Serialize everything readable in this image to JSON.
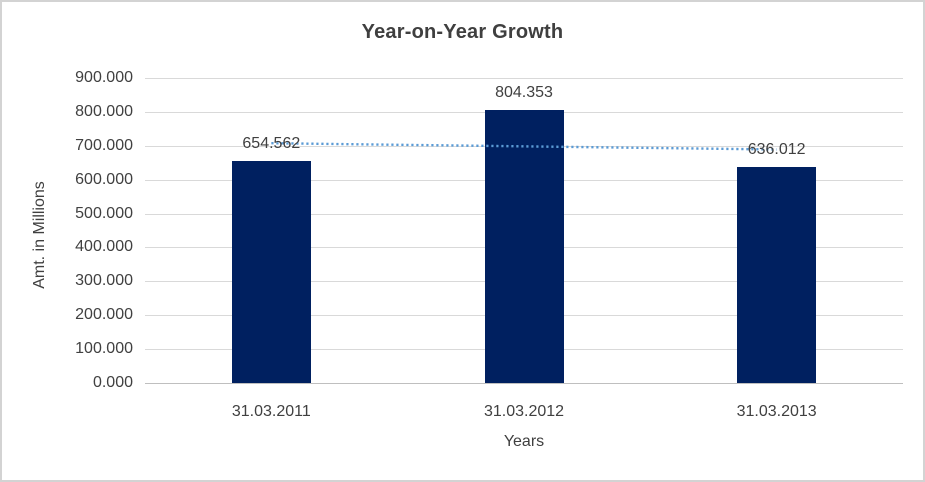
{
  "chart_data": {
    "type": "bar",
    "title": "Year-on-Year Growth",
    "xlabel": "Years",
    "ylabel": "Amt. in Millions",
    "categories": [
      "31.03.2011",
      "31.03.2012",
      "31.03.2013"
    ],
    "values": [
      654.562,
      804.353,
      636.012
    ],
    "data_labels": [
      "654.562",
      "804.353",
      "636.012"
    ],
    "ylim": [
      0,
      900
    ],
    "ytick_step": 100,
    "ytick_labels": [
      "0.000",
      "100.000",
      "200.000",
      "300.000",
      "400.000",
      "500.000",
      "600.000",
      "700.000",
      "800.000",
      "900.000"
    ],
    "grid": true,
    "legend": false,
    "bar_color": "#002060",
    "trendline": {
      "type": "linear",
      "style": "dotted",
      "color": "#5B9BD5",
      "start_value": 707.58,
      "end_value": 689.03
    }
  },
  "colors": {
    "bar": "#002060",
    "trendline": "#5B9BD5",
    "gridline": "#D9D9D9",
    "axis_line": "#BFBFBF",
    "text": "#404040",
    "frame_border": "#D3D3D3",
    "background": "#FFFFFF"
  }
}
